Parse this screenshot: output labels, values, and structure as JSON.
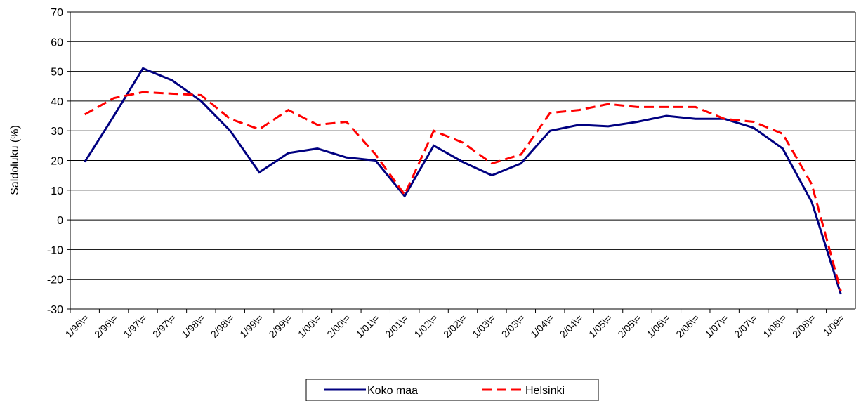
{
  "chart_data": {
    "type": "line",
    "y_label": "Saldoluku (%)",
    "categories": [
      "1/96\\=",
      "2/96\\=",
      "1/97\\=",
      "2/97\\=",
      "1/98\\=",
      "2/98\\=",
      "1/99\\=",
      "2/99\\=",
      "1/00\\=",
      "2/00\\=",
      "1/01\\=",
      "2/01\\=",
      "1/02\\=",
      "2/02\\=",
      "1/03\\=",
      "2/03\\=",
      "1/04\\=",
      "2/04\\=",
      "1/05\\=",
      "2/05\\=",
      "1/06\\=",
      "2/06\\=",
      "1/07\\=",
      "2/07\\=",
      "1/08\\=",
      "2/08\\=",
      "1/09="
    ],
    "series": [
      {
        "name": "Koko maa",
        "color": "#000080",
        "dashed": false,
        "values": [
          19.5,
          35,
          51,
          47,
          40,
          30,
          16,
          22.5,
          24,
          21,
          20,
          8,
          25,
          19.5,
          15,
          19,
          30,
          32,
          31.5,
          33,
          35,
          34,
          34,
          31,
          24,
          6,
          -25
        ]
      },
      {
        "name": "Helsinki",
        "color": "#ff0000",
        "dashed": true,
        "values": [
          35.5,
          41,
          43,
          42.5,
          42,
          34,
          30.5,
          37,
          32,
          33,
          22,
          8.5,
          30,
          26,
          19,
          22,
          36,
          37,
          39,
          38,
          38,
          38,
          34,
          33,
          29,
          12,
          -24
        ]
      }
    ],
    "ylim": [
      -30,
      70
    ],
    "yticks": [
      -30,
      -20,
      -10,
      0,
      10,
      20,
      30,
      40,
      50,
      60,
      70
    ],
    "grid": true,
    "legend": "bottom"
  }
}
